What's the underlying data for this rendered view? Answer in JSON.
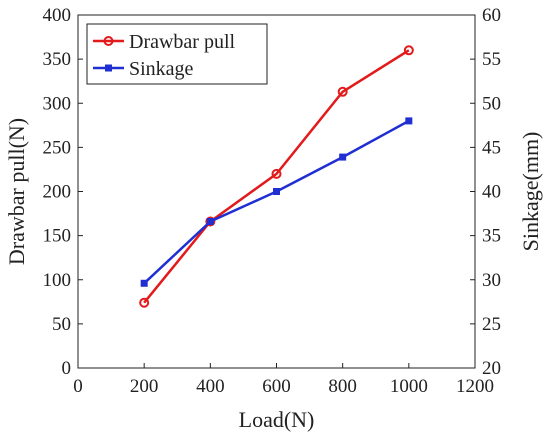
{
  "chart_data": {
    "type": "line",
    "title": "",
    "xlabel": "Load(N)",
    "ylabel_left": "Drawbar pull(N)",
    "ylabel_right": "Sinkage(mm)",
    "xlim": [
      0,
      1200
    ],
    "xticks": [
      0,
      200,
      400,
      600,
      800,
      1000,
      1200
    ],
    "ylim_left": [
      0,
      400
    ],
    "yticks_left": [
      0,
      50,
      100,
      150,
      200,
      250,
      300,
      350,
      400
    ],
    "ylim_right": [
      20,
      60
    ],
    "yticks_right": [
      20,
      25,
      30,
      35,
      40,
      45,
      50,
      55,
      60
    ],
    "grid": false,
    "legend_position": "top-left",
    "series": [
      {
        "name": "Drawbar pull",
        "axis": "left",
        "color": "#e31a1c",
        "marker": "circle",
        "x": [
          200,
          400,
          600,
          800,
          1000
        ],
        "y": [
          74,
          166,
          220,
          313,
          360
        ]
      },
      {
        "name": "Sinkage",
        "axis": "right",
        "color": "#1f2fd1",
        "marker": "square",
        "x": [
          200,
          400,
          600,
          800,
          1000
        ],
        "y": [
          29.6,
          36.6,
          40.0,
          43.9,
          48.0
        ]
      }
    ]
  }
}
